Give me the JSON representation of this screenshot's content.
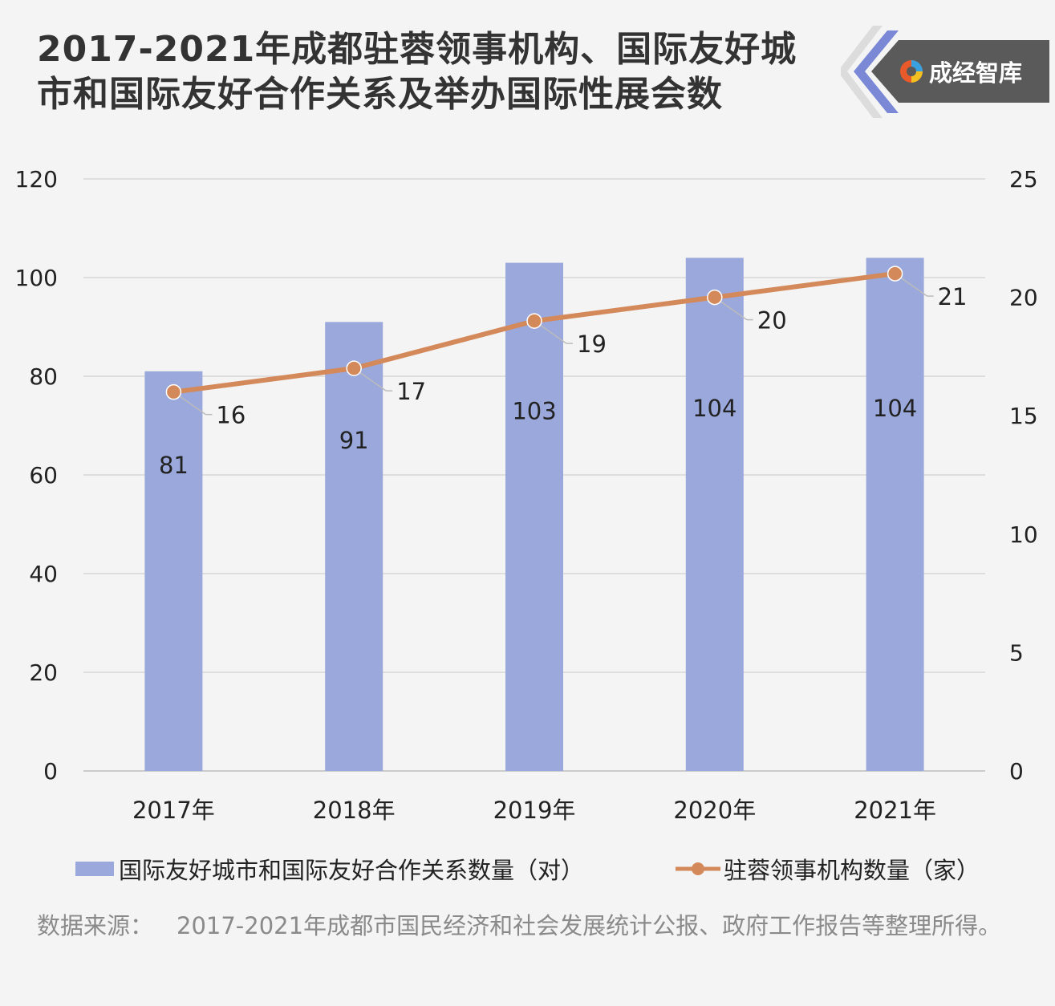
{
  "header": {
    "title_line1": "2017-2021年成都驻蓉领事机构、国际友好城",
    "title_line2": "市和国际友好合作关系及举办国际性展会数",
    "brand": "成经智库"
  },
  "chart_data": {
    "type": "bar",
    "categories": [
      "2017年",
      "2018年",
      "2019年",
      "2020年",
      "2021年"
    ],
    "series": [
      {
        "name": "国际友好城市和国际友好合作关系数量（对）",
        "type": "bar",
        "axis": "left",
        "values": [
          81,
          91,
          103,
          104,
          104
        ],
        "color": "#9aa8dc"
      },
      {
        "name": "驻蓉领事机构数量（家）",
        "type": "line",
        "axis": "right",
        "values": [
          16,
          17,
          19,
          20,
          21
        ],
        "color": "#d4895a"
      }
    ],
    "y_left": {
      "ticks": [
        "0",
        "20",
        "40",
        "60",
        "80",
        "100",
        "120"
      ],
      "ylim": [
        0,
        120
      ]
    },
    "y_right": {
      "ticks": [
        "0",
        "5",
        "10",
        "15",
        "20",
        "25"
      ],
      "ylim": [
        0,
        25
      ]
    },
    "grid": true,
    "legend_position": "bottom"
  },
  "source": {
    "label": "数据来源：",
    "text": "2017-2021年成都市国民经济和社会发展统计公报、政府工作报告等整理所得。"
  }
}
